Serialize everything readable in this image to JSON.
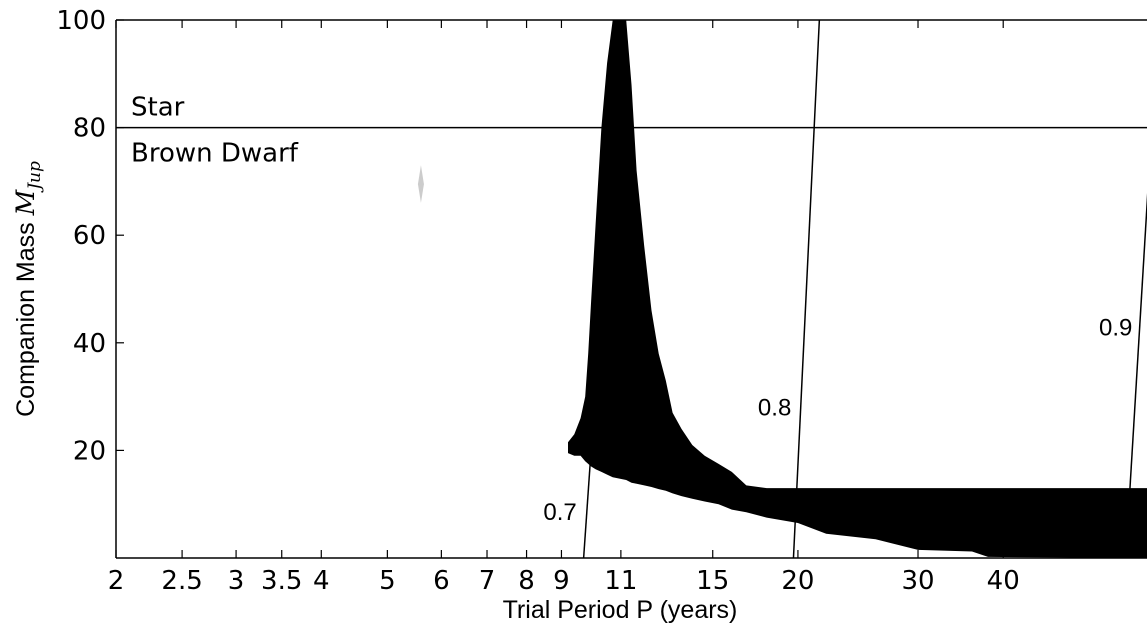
{
  "chart_data": {
    "type": "heatmap",
    "title": "",
    "xlabel": "Trial Period P (years)",
    "ylabel_text": "Companion Mass ",
    "ylabel_math": "M",
    "ylabel_sub": "Jup",
    "x_scale": "log",
    "xlim": [
      2,
      65
    ],
    "ylim": [
      0,
      100
    ],
    "x_ticks": [
      2,
      2.5,
      3,
      3.5,
      4,
      5,
      6,
      7,
      8,
      9,
      11,
      15,
      20,
      30,
      40
    ],
    "x_tick_labels": [
      "2",
      "2.5",
      "3",
      "3.5",
      "4",
      "5",
      "6",
      "7",
      "8",
      "9",
      "11",
      "15",
      "20",
      "30",
      "40"
    ],
    "y_ticks": [
      20,
      40,
      60,
      80,
      100
    ],
    "y_tick_labels": [
      "20",
      "40",
      "60",
      "80",
      "100"
    ],
    "grid": false,
    "boundary": {
      "mass": 80,
      "label_above": "Star",
      "label_below": "Brown Dwarf"
    },
    "contours": [
      {
        "label": "0.7",
        "points": [
          [
            9.7,
            0
          ],
          [
            11.0,
            100
          ]
        ]
      },
      {
        "label": "0.8",
        "points": [
          [
            19.7,
            0
          ],
          [
            21.5,
            100
          ]
        ]
      },
      {
        "label": "0.9",
        "points": [
          [
            60.5,
            0
          ],
          [
            67.5,
            100
          ]
        ]
      }
    ],
    "excluded_region": {
      "color": "#000000",
      "profile": [
        {
          "P": 9.2,
          "mass_low": 19.5,
          "mass_high": 21.5
        },
        {
          "P": 9.4,
          "mass_low": 19.0,
          "mass_high": 23.0
        },
        {
          "P": 9.6,
          "mass_low": 19.0,
          "mass_high": 26.0
        },
        {
          "P": 9.75,
          "mass_low": 18.0,
          "mass_high": 30.0
        },
        {
          "P": 9.85,
          "mass_low": 17.5,
          "mass_high": 38.0
        },
        {
          "P": 9.95,
          "mass_low": 17.0,
          "mass_high": 48.0
        },
        {
          "P": 10.1,
          "mass_low": 16.5,
          "mass_high": 62.0
        },
        {
          "P": 10.3,
          "mass_low": 16.0,
          "mass_high": 80.0
        },
        {
          "P": 10.5,
          "mass_low": 15.5,
          "mass_high": 92.0
        },
        {
          "P": 10.7,
          "mass_low": 15.0,
          "mass_high": 100.0
        },
        {
          "P": 11.2,
          "mass_low": 14.5,
          "mass_high": 100.0
        },
        {
          "P": 11.4,
          "mass_low": 14.0,
          "mass_high": 88.0
        },
        {
          "P": 11.6,
          "mass_low": 13.8,
          "mass_high": 72.0
        },
        {
          "P": 11.9,
          "mass_low": 13.5,
          "mass_high": 58.0
        },
        {
          "P": 12.2,
          "mass_low": 13.2,
          "mass_high": 46.0
        },
        {
          "P": 12.5,
          "mass_low": 12.8,
          "mass_high": 38.0
        },
        {
          "P": 12.8,
          "mass_low": 12.5,
          "mass_high": 33.0
        },
        {
          "P": 13.1,
          "mass_low": 12.0,
          "mass_high": 27.0
        },
        {
          "P": 13.5,
          "mass_low": 11.5,
          "mass_high": 24.0
        },
        {
          "P": 14.0,
          "mass_low": 11.0,
          "mass_high": 21.0
        },
        {
          "P": 14.6,
          "mass_low": 10.5,
          "mass_high": 19.0
        },
        {
          "P": 15.3,
          "mass_low": 10.0,
          "mass_high": 17.5
        },
        {
          "P": 16.0,
          "mass_low": 9.0,
          "mass_high": 16.0
        },
        {
          "P": 16.8,
          "mass_low": 8.5,
          "mass_high": 13.5
        },
        {
          "P": 18.0,
          "mass_low": 7.5,
          "mass_high": 13.0
        },
        {
          "P": 20.0,
          "mass_low": 6.5,
          "mass_high": 13.0
        },
        {
          "P": 22.0,
          "mass_low": 4.5,
          "mass_high": 13.0
        },
        {
          "P": 26.0,
          "mass_low": 3.5,
          "mass_high": 13.0
        },
        {
          "P": 30.0,
          "mass_low": 1.5,
          "mass_high": 13.0
        },
        {
          "P": 36.0,
          "mass_low": 1.2,
          "mass_high": 13.0
        },
        {
          "P": 38.0,
          "mass_low": 0.2,
          "mass_high": 13.0
        },
        {
          "P": 65.0,
          "mass_low": 0.0,
          "mass_high": 13.0
        }
      ]
    },
    "faint_feature": {
      "color": "#cccccc",
      "P": 5.6,
      "mass_low": 66,
      "mass_high": 73
    }
  }
}
